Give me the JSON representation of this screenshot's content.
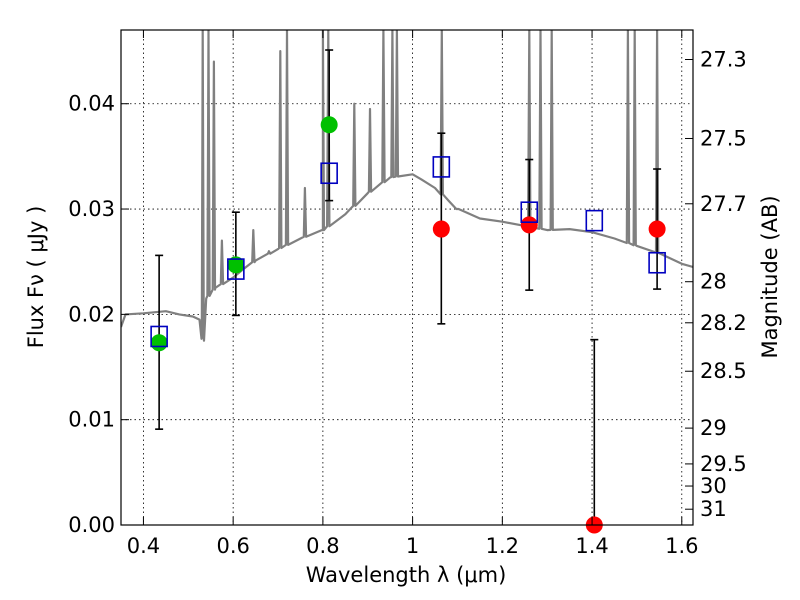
{
  "chart_data": {
    "type": "scatter",
    "xlabel": "Wavelength  λ (μm)",
    "ylabel": "Flux  Fν  ( μJy )",
    "ylabel_right": "Magnitude (AB)",
    "xlim": [
      0.35,
      1.625
    ],
    "ylim": [
      0.0,
      0.047
    ],
    "grid": true,
    "x_ticks": [
      0.4,
      0.6,
      0.8,
      1.0,
      1.2,
      1.4,
      1.6
    ],
    "x_tick_labels": [
      "0.4",
      "0.6",
      "0.8",
      "1",
      "1.2",
      "1.4",
      "1.6"
    ],
    "y_ticks": [
      0.0,
      0.01,
      0.02,
      0.03,
      0.04
    ],
    "y_tick_labels": [
      "0.00",
      "0.01",
      "0.02",
      "0.03",
      "0.04"
    ],
    "right_ticks": [
      {
        "label": "27.3",
        "flux": 0.0442
      },
      {
        "label": "27.5",
        "flux": 0.0367
      },
      {
        "label": "27.7",
        "flux": 0.0305
      },
      {
        "label": "28",
        "flux": 0.0231
      },
      {
        "label": "28.2",
        "flux": 0.0192
      },
      {
        "label": "28.5",
        "flux": 0.0146
      },
      {
        "label": "29",
        "flux": 0.0092
      },
      {
        "label": "29.5",
        "flux": 0.0058
      },
      {
        "label": "30",
        "flux": 0.0037
      },
      {
        "label": "31",
        "flux": 0.0015
      }
    ],
    "colors": {
      "sed": "#808080",
      "green": "#00c000",
      "red": "#ff0000",
      "model": "#0000c0",
      "error": "#000000",
      "grid": "#000000"
    },
    "series": [
      {
        "marker": "circle",
        "color": "#00c000",
        "points": [
          {
            "x": 0.435,
            "y": 0.0173,
            "yerr_low": 0.0091,
            "yerr_high": 0.0256
          },
          {
            "x": 0.606,
            "y": 0.0247,
            "yerr_low": 0.0199,
            "yerr_high": 0.0297
          },
          {
            "x": 0.814,
            "y": 0.038,
            "yerr_low": 0.0308,
            "yerr_high": 0.0451
          }
        ]
      },
      {
        "marker": "circle",
        "color": "#ff0000",
        "points": [
          {
            "x": 1.064,
            "y": 0.0281,
            "yerr_low": 0.0191,
            "yerr_high": 0.0372
          },
          {
            "x": 1.26,
            "y": 0.0285,
            "yerr_low": 0.0223,
            "yerr_high": 0.0347
          },
          {
            "x": 1.405,
            "y": 0.0,
            "yerr_low": 0.0,
            "yerr_high": 0.0176
          },
          {
            "x": 1.545,
            "y": 0.0281,
            "yerr_low": 0.0224,
            "yerr_high": 0.0338
          }
        ]
      },
      {
        "marker": "square-open",
        "color": "#0000c0",
        "points": [
          {
            "x": 0.435,
            "y": 0.0179
          },
          {
            "x": 0.606,
            "y": 0.0243
          },
          {
            "x": 0.814,
            "y": 0.0334
          },
          {
            "x": 1.064,
            "y": 0.034
          },
          {
            "x": 1.26,
            "y": 0.0297
          },
          {
            "x": 1.405,
            "y": 0.0289
          },
          {
            "x": 1.545,
            "y": 0.0249
          }
        ]
      }
    ],
    "sed_curve": {
      "color": "#808080",
      "continuum": [
        [
          0.35,
          0.0188
        ],
        [
          0.36,
          0.02
        ],
        [
          0.4,
          0.0201
        ],
        [
          0.45,
          0.0203
        ],
        [
          0.48,
          0.02
        ],
        [
          0.51,
          0.0198
        ],
        [
          0.525,
          0.0195
        ],
        [
          0.53,
          0.0178
        ],
        [
          0.535,
          0.0175
        ],
        [
          0.54,
          0.0215
        ],
        [
          0.56,
          0.0225
        ],
        [
          0.6,
          0.0235
        ],
        [
          0.62,
          0.0242
        ],
        [
          0.65,
          0.0251
        ],
        [
          0.7,
          0.0262
        ],
        [
          0.75,
          0.0272
        ],
        [
          0.8,
          0.028
        ],
        [
          0.85,
          0.0295
        ],
        [
          0.9,
          0.0315
        ],
        [
          0.95,
          0.033
        ],
        [
          1.0,
          0.0333
        ],
        [
          1.02,
          0.0328
        ],
        [
          1.05,
          0.032
        ],
        [
          1.08,
          0.0308
        ],
        [
          1.1,
          0.03
        ],
        [
          1.15,
          0.0291
        ],
        [
          1.2,
          0.0288
        ],
        [
          1.25,
          0.0284
        ],
        [
          1.3,
          0.028
        ],
        [
          1.35,
          0.0281
        ],
        [
          1.4,
          0.0278
        ],
        [
          1.45,
          0.0272
        ],
        [
          1.5,
          0.0265
        ],
        [
          1.55,
          0.0258
        ],
        [
          1.6,
          0.0248
        ],
        [
          1.625,
          0.0245
        ]
      ],
      "emission_lines": [
        {
          "x": 0.532,
          "peak": 0.047
        },
        {
          "x": 0.545,
          "peak": 0.047
        },
        {
          "x": 0.557,
          "peak": 0.044
        },
        {
          "x": 0.575,
          "peak": 0.027
        },
        {
          "x": 0.645,
          "peak": 0.028
        },
        {
          "x": 0.68,
          "peak": 0.026
        },
        {
          "x": 0.705,
          "peak": 0.045
        },
        {
          "x": 0.72,
          "peak": 0.047
        },
        {
          "x": 0.76,
          "peak": 0.032
        },
        {
          "x": 0.8,
          "peak": 0.047
        },
        {
          "x": 0.812,
          "peak": 0.047
        },
        {
          "x": 0.87,
          "peak": 0.04
        },
        {
          "x": 0.905,
          "peak": 0.0395
        },
        {
          "x": 0.935,
          "peak": 0.047
        },
        {
          "x": 0.955,
          "peak": 0.047
        },
        {
          "x": 0.965,
          "peak": 0.047
        },
        {
          "x": 1.065,
          "peak": 0.047
        },
        {
          "x": 1.1,
          "peak": 0.03
        },
        {
          "x": 1.26,
          "peak": 0.047
        },
        {
          "x": 1.285,
          "peak": 0.047
        },
        {
          "x": 1.31,
          "peak": 0.047
        },
        {
          "x": 1.48,
          "peak": 0.047
        },
        {
          "x": 1.495,
          "peak": 0.047
        },
        {
          "x": 1.545,
          "peak": 0.047
        }
      ]
    }
  }
}
